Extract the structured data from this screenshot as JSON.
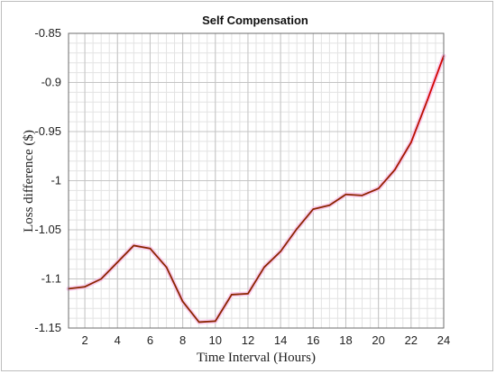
{
  "chart_data": {
    "type": "line",
    "title": "Self Compensation",
    "xlabel": "Time Interval (Hours)",
    "ylabel": "Loss difference ($)",
    "xlim": [
      1,
      24
    ],
    "ylim": [
      -1.15,
      -0.85
    ],
    "x_ticks": [
      2,
      4,
      6,
      8,
      10,
      12,
      14,
      16,
      18,
      20,
      22,
      24
    ],
    "y_ticks": [
      -1.15,
      -1.1,
      -1.05,
      -1,
      -0.95,
      -0.9,
      -0.85
    ],
    "x_tick_labels": [
      "2",
      "4",
      "6",
      "8",
      "10",
      "12",
      "14",
      "16",
      "18",
      "20",
      "22",
      "24"
    ],
    "y_tick_labels": [
      "-1.15",
      "-1.1",
      "-1.05",
      "-1",
      "-0.95",
      "-0.9",
      "-0.85"
    ],
    "grid": true,
    "minor_grid": true,
    "series": [
      {
        "color": "#8B0000",
        "x": [
          1,
          2,
          3,
          4,
          5,
          6,
          7,
          8,
          9,
          10,
          11,
          12,
          13,
          14,
          15,
          16,
          17,
          18,
          19,
          20,
          21,
          22,
          23,
          24
        ],
        "y": [
          -1.11,
          -1.108,
          -1.1,
          -1.083,
          -1.066,
          -1.069,
          -1.088,
          -1.123,
          -1.144,
          -1.143,
          -1.116,
          -1.115,
          -1.088,
          -1.072,
          -1.049,
          -1.029,
          -1.025,
          -1.014,
          -1.015,
          -1.008,
          -0.989,
          -0.961,
          -0.918,
          -0.873
        ]
      }
    ],
    "gradient_colors": [
      "#8B2500",
      "#E00000"
    ]
  }
}
